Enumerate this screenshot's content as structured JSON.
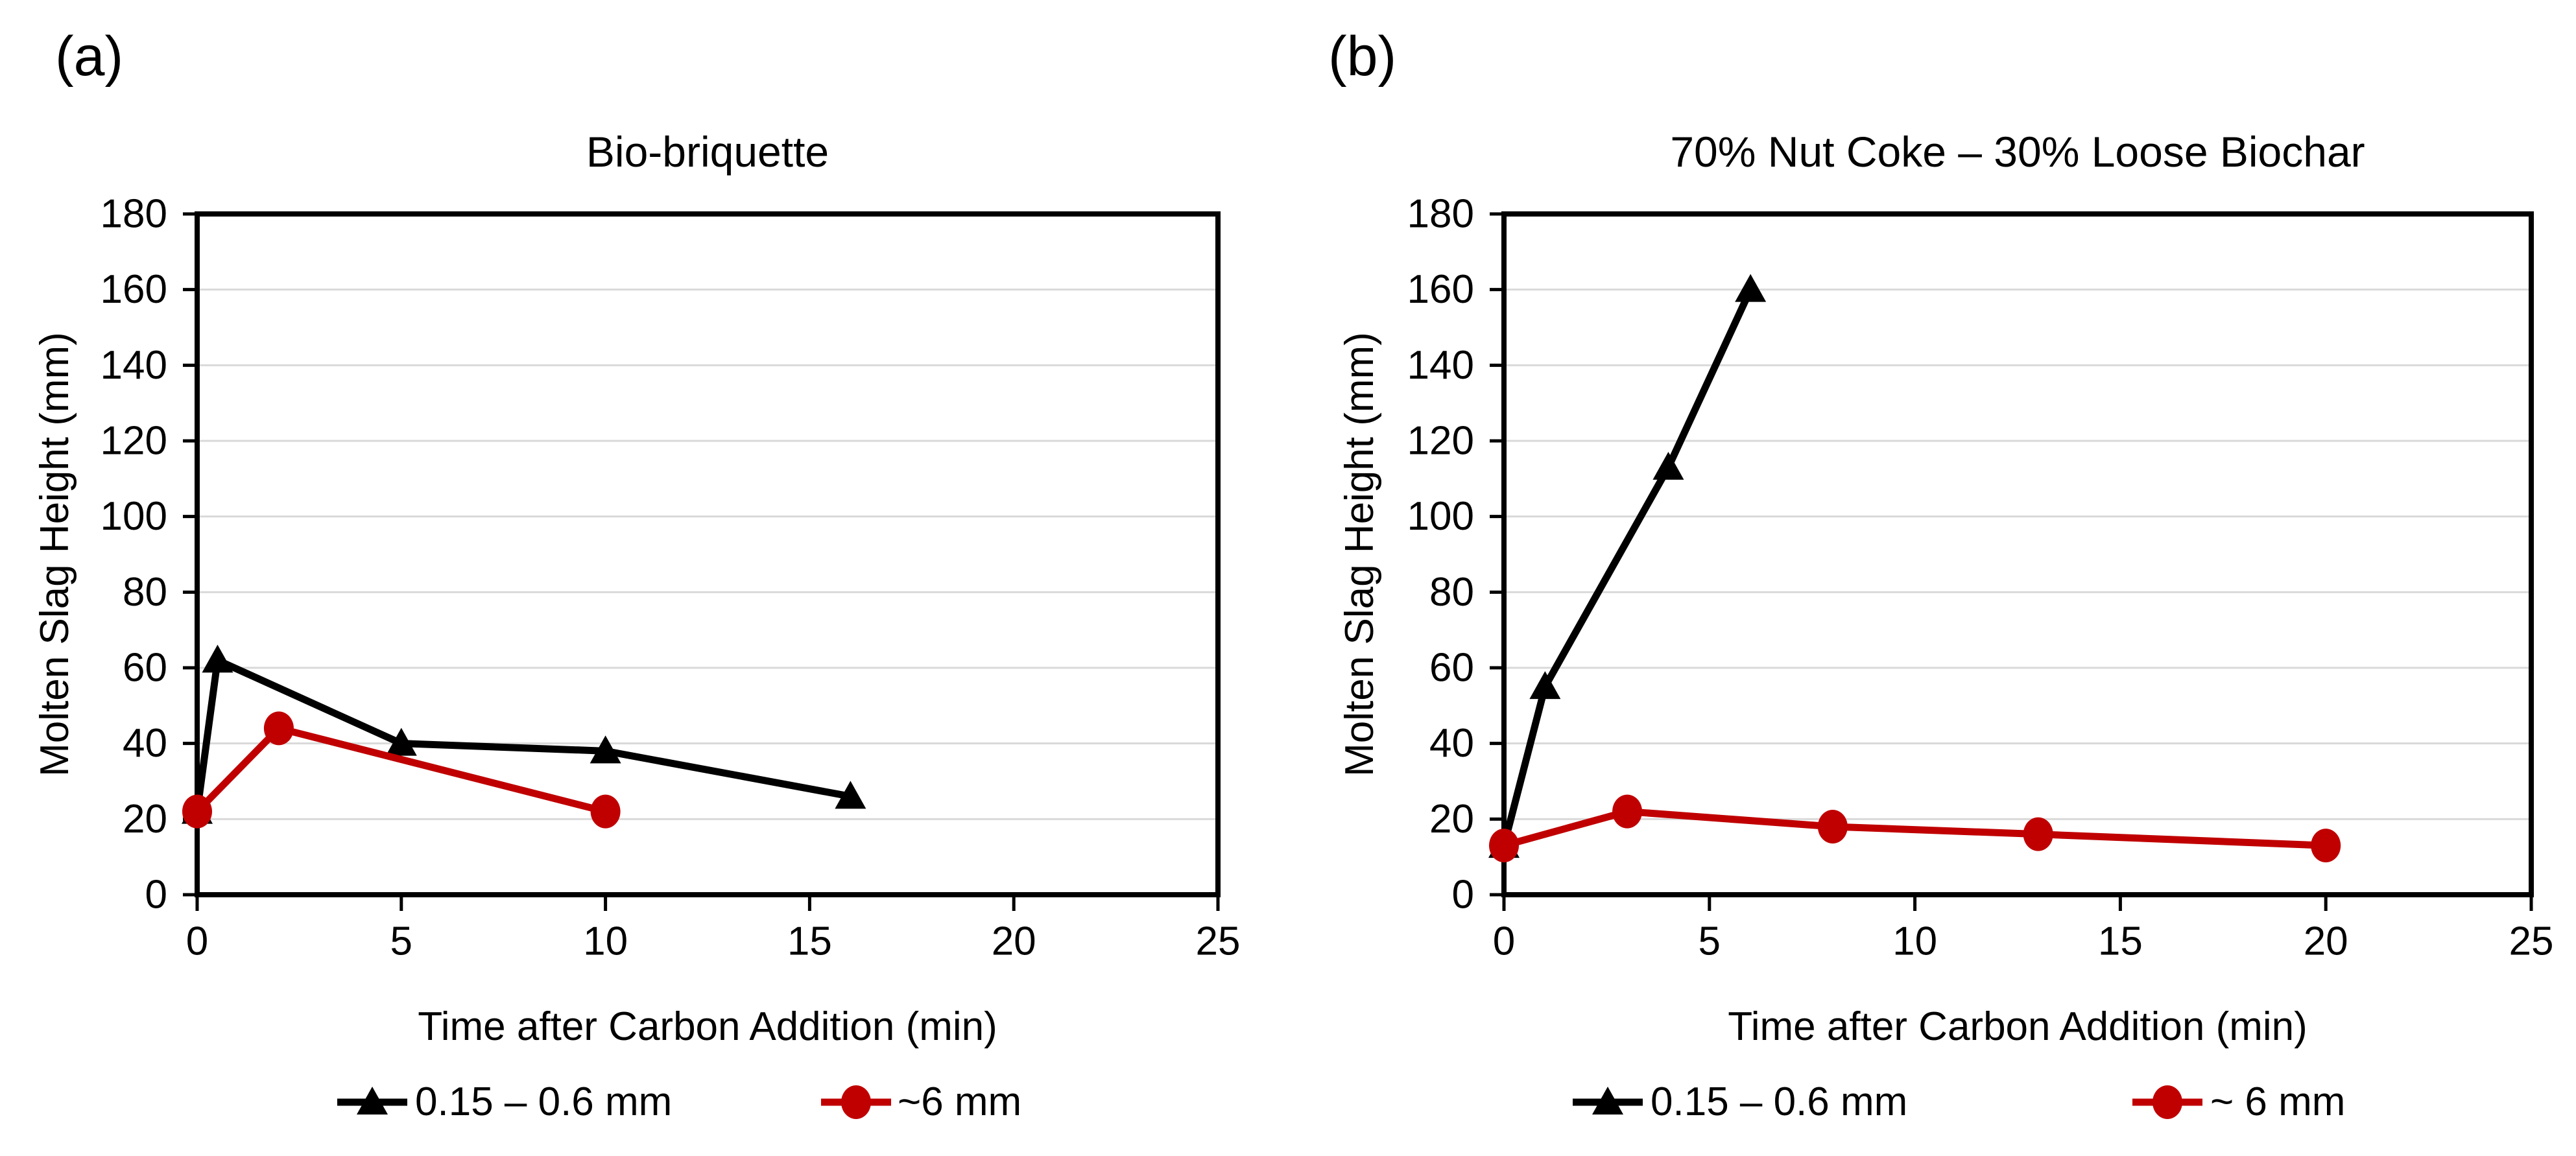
{
  "colors": {
    "series_fine": "#000000",
    "series_coarse": "#C00000",
    "gridline": "#D9D9D9",
    "axis": "#000000",
    "background": "#FFFFFF",
    "text": "#000000"
  },
  "panels": [
    {
      "panel_letter": "(a)",
      "title": "Bio-briquette",
      "xlabel": "Time after Carbon Addition (min)",
      "ylabel": "Molten Slag Height (mm)",
      "legend": [
        {
          "label": "0.15 – 0.6 mm",
          "marker": "triangle",
          "color": "#000000"
        },
        {
          "label": "~6 mm",
          "marker": "circle",
          "color": "#C00000"
        }
      ]
    },
    {
      "panel_letter": "(b)",
      "title": "70% Nut Coke – 30% Loose Biochar",
      "xlabel": "Time after Carbon Addition (min)",
      "ylabel": "Molten Slag Height (mm)",
      "legend": [
        {
          "label": "0.15 – 0.6 mm",
          "marker": "triangle",
          "color": "#000000"
        },
        {
          "label": "~ 6 mm",
          "marker": "circle",
          "color": "#C00000"
        }
      ]
    }
  ],
  "chart_data": [
    {
      "type": "line",
      "title": "Bio-briquette",
      "xlabel": "Time after Carbon Addition (min)",
      "ylabel": "Molten Slag Height (mm)",
      "xlim": [
        0,
        25
      ],
      "ylim": [
        0,
        180
      ],
      "xticks": [
        0,
        5,
        10,
        15,
        20,
        25
      ],
      "yticks": [
        0,
        20,
        40,
        60,
        80,
        100,
        120,
        140,
        160,
        180
      ],
      "grid": "horizontal",
      "legend_position": "bottom",
      "series": [
        {
          "name": "0.15 – 0.6 mm",
          "marker": "triangle",
          "color": "#000000",
          "points": [
            [
              0,
              22
            ],
            [
              0.5,
              62
            ],
            [
              5,
              40
            ],
            [
              10,
              38
            ],
            [
              16,
              26
            ]
          ]
        },
        {
          "name": "~6 mm",
          "marker": "circle",
          "color": "#C00000",
          "points": [
            [
              0,
              22
            ],
            [
              2,
              44
            ],
            [
              10,
              22
            ]
          ]
        }
      ]
    },
    {
      "type": "line",
      "title": "70% Nut Coke – 30% Loose Biochar",
      "xlabel": "Time after Carbon Addition (min)",
      "ylabel": "Molten Slag Height (mm)",
      "xlim": [
        0,
        25
      ],
      "ylim": [
        0,
        180
      ],
      "xticks": [
        0,
        5,
        10,
        15,
        20,
        25
      ],
      "yticks": [
        0,
        20,
        40,
        60,
        80,
        100,
        120,
        140,
        160,
        180
      ],
      "grid": "horizontal",
      "legend_position": "bottom",
      "series": [
        {
          "name": "0.15 – 0.6 mm",
          "marker": "triangle",
          "color": "#000000",
          "points": [
            [
              0,
              13
            ],
            [
              1,
              55
            ],
            [
              4,
              113
            ],
            [
              6,
              160
            ]
          ]
        },
        {
          "name": "~ 6 mm",
          "marker": "circle",
          "color": "#C00000",
          "points": [
            [
              0,
              13
            ],
            [
              3,
              22
            ],
            [
              8,
              18
            ],
            [
              13,
              16
            ],
            [
              20,
              13
            ]
          ]
        }
      ]
    }
  ]
}
